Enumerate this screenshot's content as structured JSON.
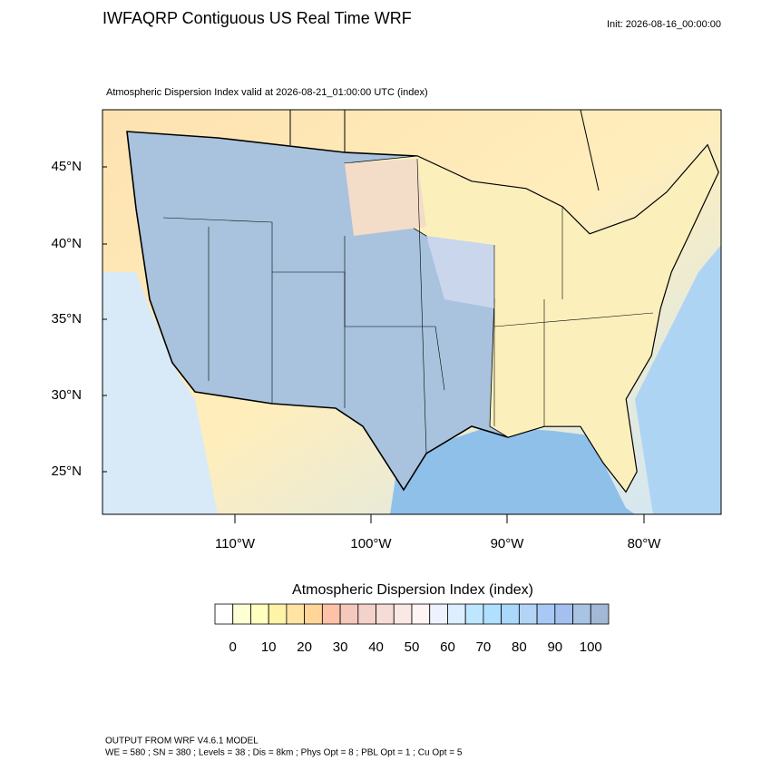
{
  "title": "IWFAQRP Contiguous US Real Time WRF",
  "init": "Init: 2026-08-16_00:00:00",
  "subtitle": "Atmospheric Dispersion Index valid at 2026-08-21_01:00:00 UTC   (index)",
  "map": {
    "lat_labels": [
      "45°N",
      "40°N",
      "35°N",
      "30°N",
      "25°N"
    ],
    "lon_labels": [
      "110°W",
      "100°W",
      "90°W",
      "80°W"
    ]
  },
  "colorbar": {
    "title": "Atmospheric Dispersion Index  (index)",
    "ticks": [
      0,
      10,
      20,
      30,
      40,
      50,
      60,
      70,
      80,
      90,
      100
    ],
    "colors": [
      "#ffffff",
      "#ffffd4",
      "#ffffc0",
      "#fff3a8",
      "#ffe4a4",
      "#ffd698",
      "#ffc2a8",
      "#f5c8bc",
      "#f2d2ca",
      "#f6dcd6",
      "#f9e8e4",
      "#fff4f4",
      "#eef2ff",
      "#dceeff",
      "#bfe6ff",
      "#b0e0ff",
      "#a9d8fb",
      "#b3d4f6",
      "#a9c8f6",
      "#a4c0ee",
      "#a9c3e2",
      "#a2b8d6"
    ]
  },
  "footer": [
    "OUTPUT FROM WRF V4.6.1 MODEL",
    "WE = 580 ; SN = 380 ; Levels = 38 ; Dis = 8km ; Phys Opt = 8 ; PBL Opt = 1 ; Cu Opt = 5"
  ]
}
